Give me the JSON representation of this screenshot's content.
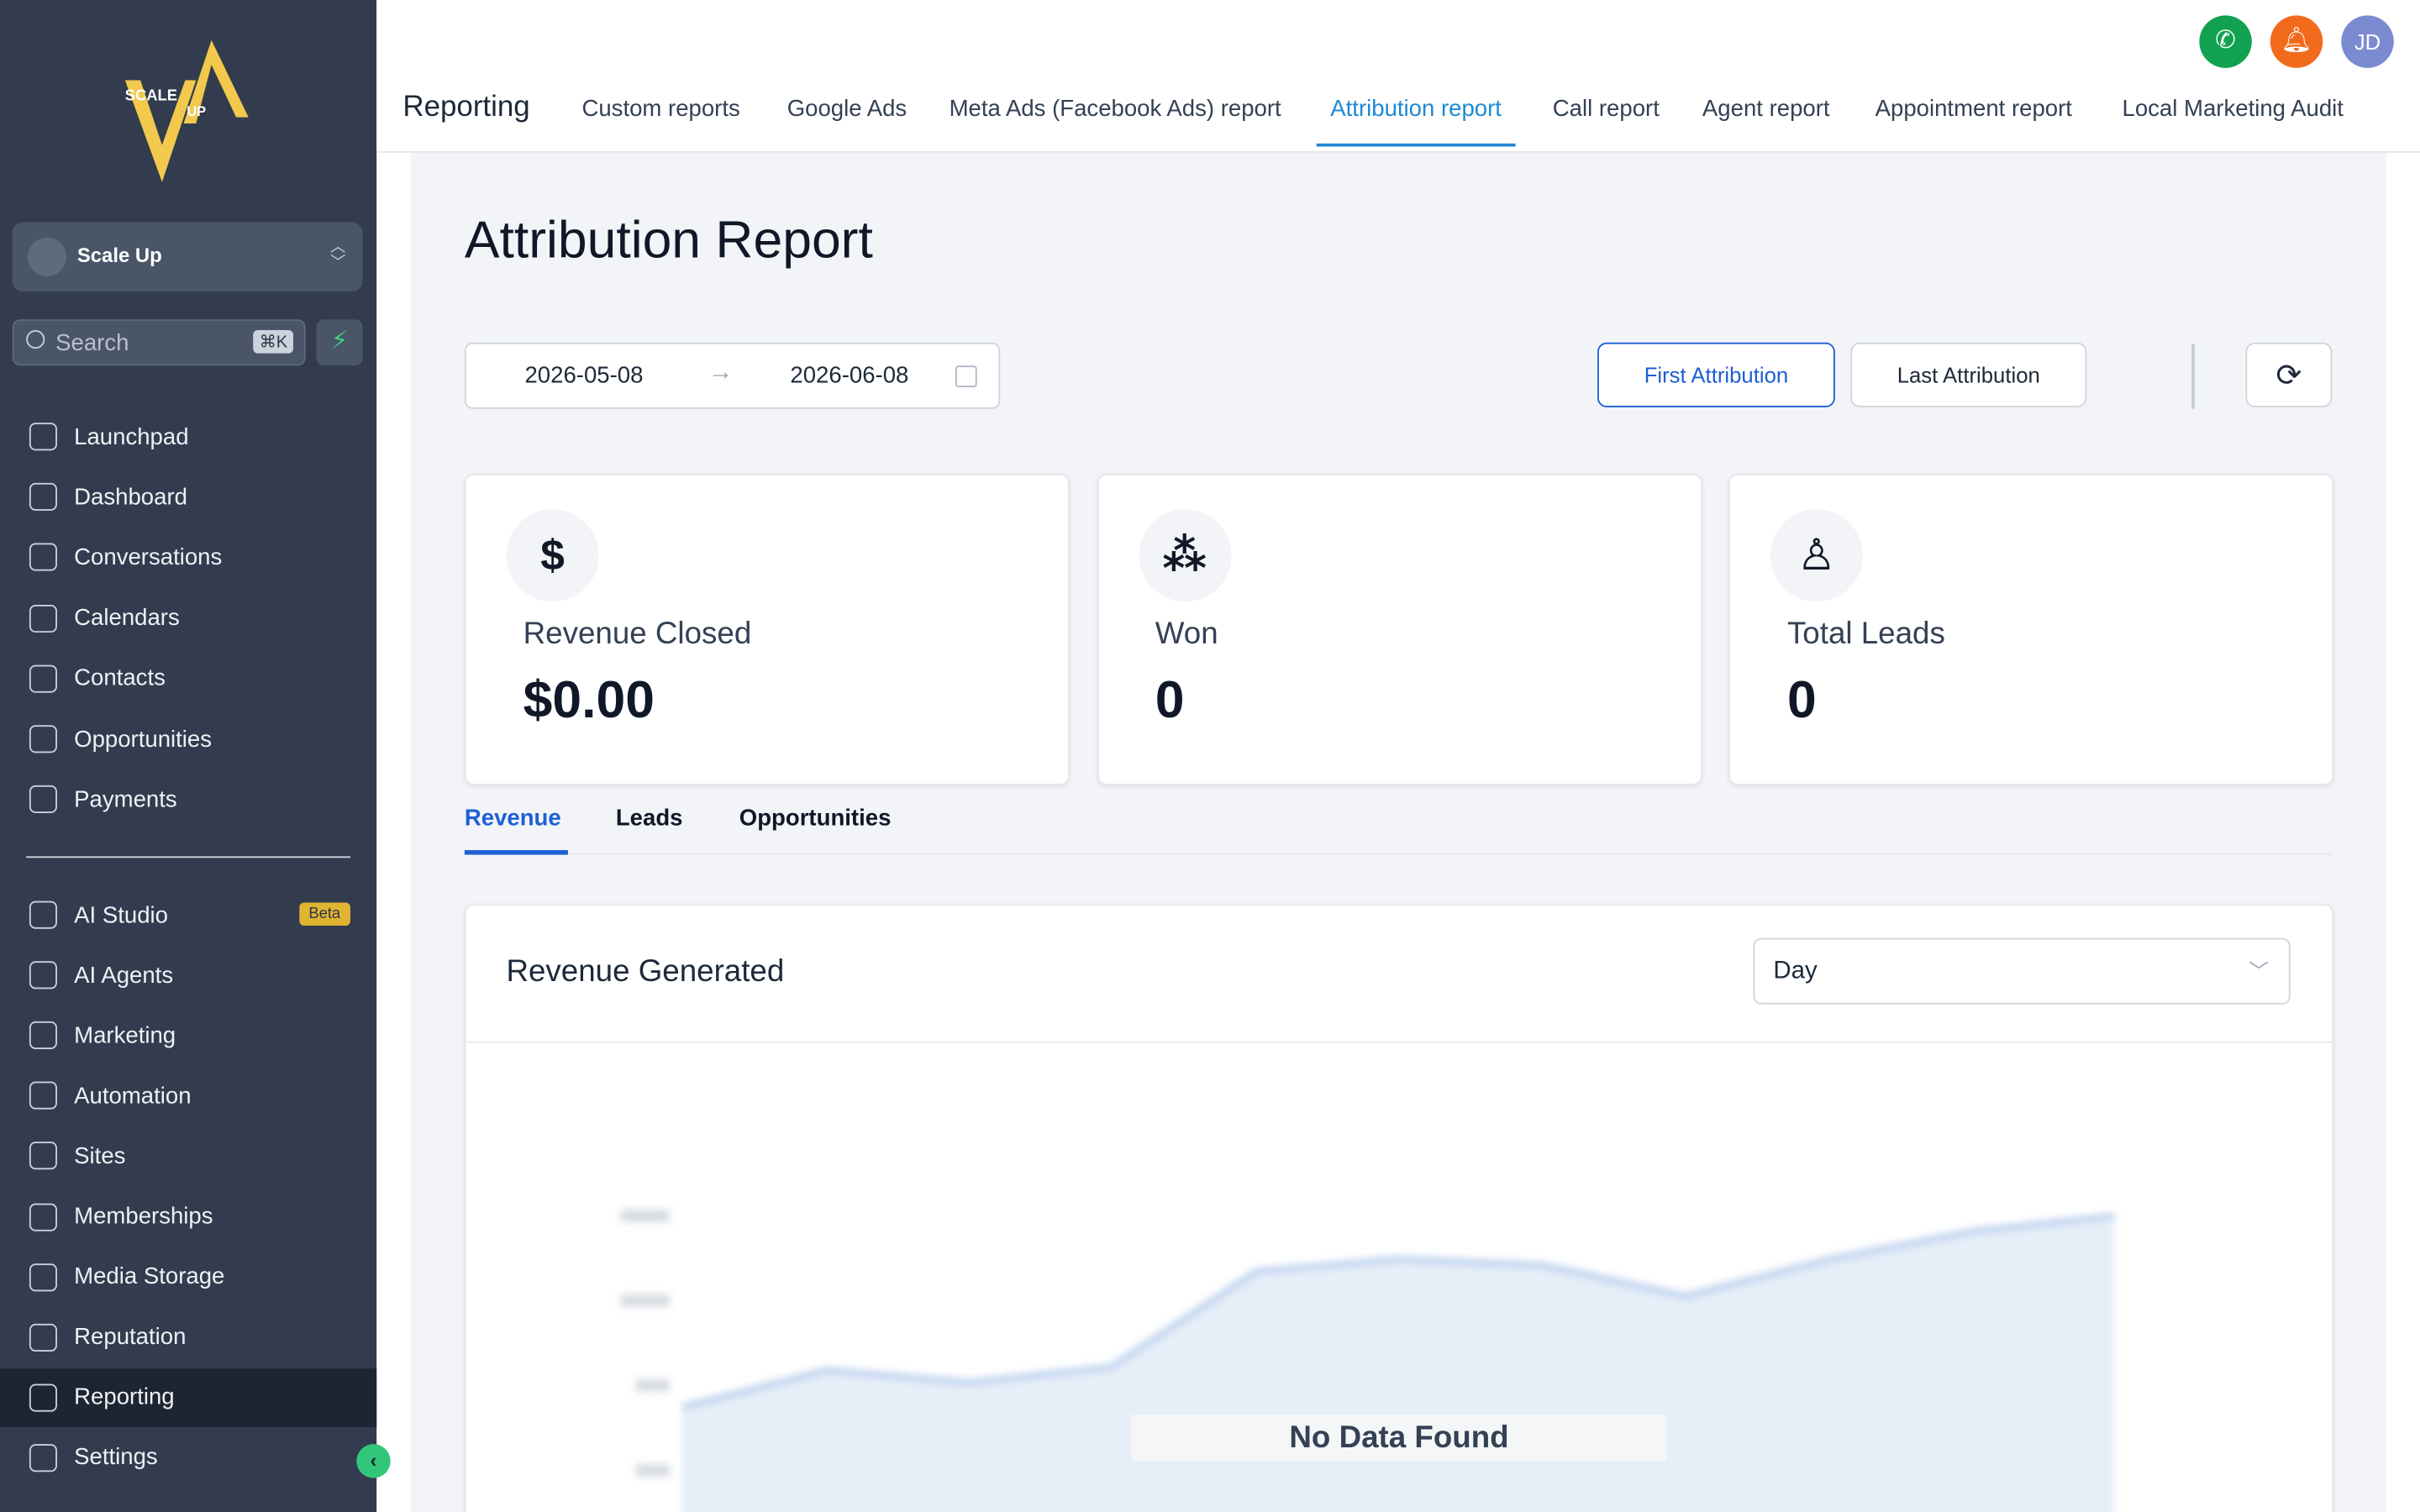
{
  "sidebar": {
    "logo_text": [
      "SCALE",
      "UP"
    ],
    "account": "Scale Up",
    "search_placeholder": "Search",
    "search_shortcut": "⌘K",
    "nav_main": [
      "Launchpad",
      "Dashboard",
      "Conversations",
      "Calendars",
      "Contacts",
      "Opportunities",
      "Payments"
    ],
    "nav_tools": [
      "AI Studio",
      "AI Agents",
      "Marketing",
      "Automation",
      "Sites",
      "Memberships",
      "Media Storage",
      "Reputation",
      "Reporting",
      "Settings"
    ],
    "active": "Reporting",
    "beta_badge": "Beta"
  },
  "topbar": {
    "section": "Reporting",
    "tabs": [
      "Custom reports",
      "Google Ads",
      "Meta Ads (Facebook Ads) report",
      "Attribution report",
      "Call report",
      "Agent report",
      "Appointment report",
      "Local Marketing Audit"
    ],
    "active_tab": "Attribution report",
    "avatar": "JD"
  },
  "report": {
    "title": "Attribution Report",
    "date_start": "2026-05-08",
    "date_end": "2026-06-08",
    "buttons": [
      "First Attribution",
      "Last Attribution"
    ],
    "cards": [
      {
        "label": "Revenue Closed",
        "value": "$0.00"
      },
      {
        "label": "Won",
        "value": "0"
      },
      {
        "label": "Total Leads",
        "value": "0"
      }
    ],
    "tabs": [
      "Revenue",
      "Leads",
      "Opportunities"
    ],
    "chart_card": {
      "title": "Revenue Generated",
      "period": "Day",
      "empty_message": "No Data Found"
    }
  }
}
